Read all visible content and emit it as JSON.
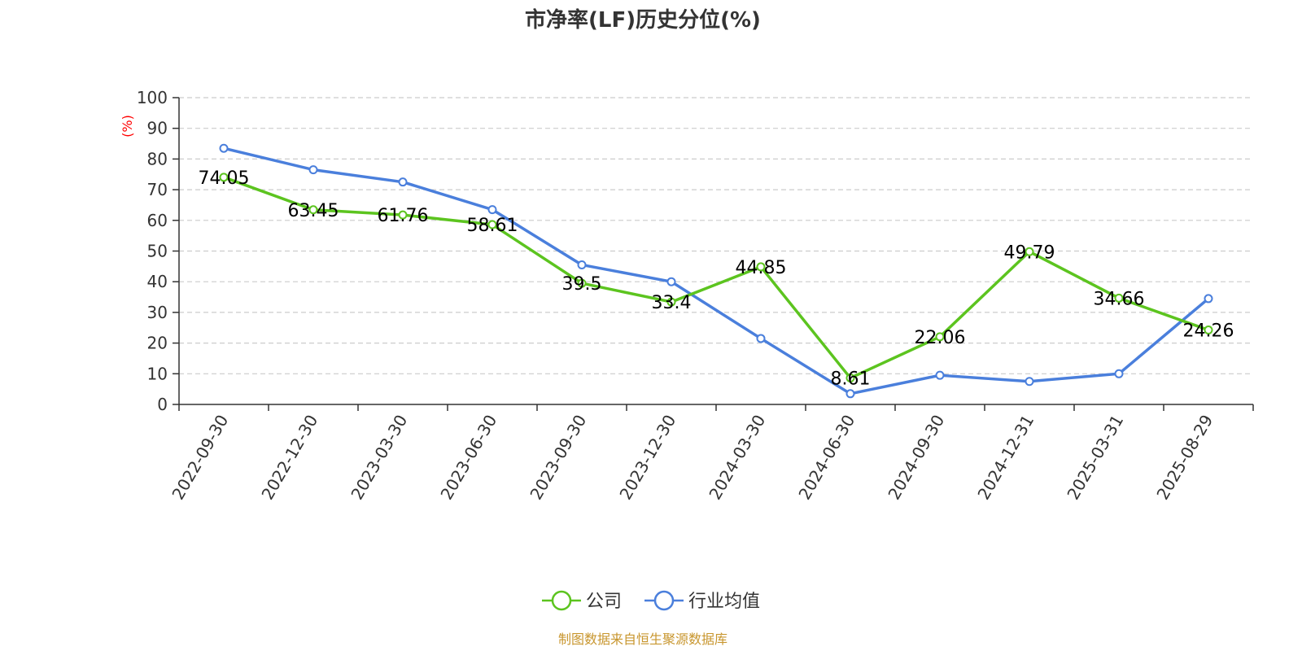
{
  "chart_data": {
    "type": "line",
    "title": "市净率(LF)历史分位(%)",
    "ylabel": "(%)",
    "xlabel": "",
    "ylim": [
      0,
      100
    ],
    "yticks": [
      0,
      10,
      20,
      30,
      40,
      50,
      60,
      70,
      80,
      90,
      100
    ],
    "grid": true,
    "legend_position": "bottom",
    "categories": [
      "2022-09-30",
      "2022-12-30",
      "2023-03-30",
      "2023-06-30",
      "2023-09-30",
      "2023-12-30",
      "2024-03-30",
      "2024-06-30",
      "2024-09-30",
      "2024-12-31",
      "2025-03-31",
      "2025-08-29"
    ],
    "series": [
      {
        "name": "公司",
        "color": "#5cc41f",
        "values": [
          74.05,
          63.45,
          61.76,
          58.61,
          39.5,
          33.4,
          44.85,
          8.61,
          22.06,
          49.79,
          34.66,
          24.26
        ],
        "labels": [
          "74.05",
          "63.45",
          "61.76",
          "58.61",
          "39.5",
          "33.4",
          "44.85",
          "8.61",
          "22.06",
          "49.79",
          "34.66",
          "24.26"
        ]
      },
      {
        "name": "行业均值",
        "color": "#4a7fdc",
        "values": [
          83.5,
          76.5,
          72.5,
          63.5,
          45.5,
          40.0,
          21.5,
          3.5,
          9.5,
          7.5,
          10.0,
          34.5
        ]
      }
    ],
    "source": "制图数据来自恒生聚源数据库"
  }
}
